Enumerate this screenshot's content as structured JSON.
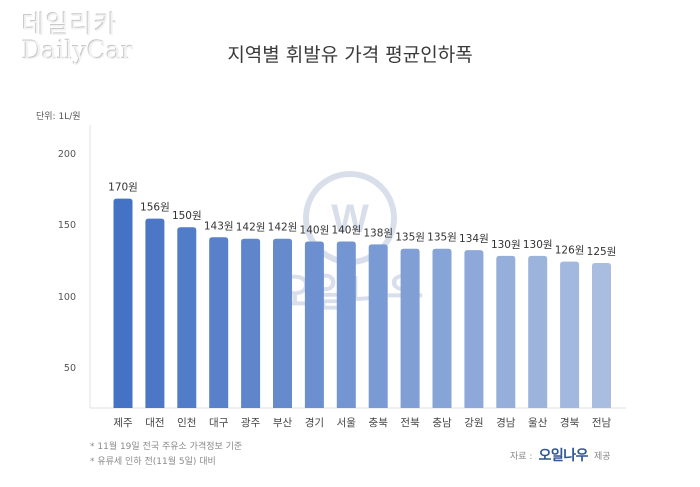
{
  "watermark": {
    "korean": "데일리카",
    "english": "DailyCar"
  },
  "chart_data": {
    "type": "bar",
    "title": "지역별 휘발유 가격 평균인하폭",
    "unit_label": "단위: 1L/원",
    "xlabel": "",
    "ylabel": "",
    "ylim": [
      23.6,
      215
    ],
    "yticks": [
      50,
      100,
      150,
      200
    ],
    "grid": false,
    "value_suffix": "원",
    "categories": [
      "제주",
      "대전",
      "인천",
      "대구",
      "광주",
      "부산",
      "경기",
      "서울",
      "충북",
      "전북",
      "충남",
      "강원",
      "경남",
      "울산",
      "경북",
      "전남"
    ],
    "values": [
      170,
      156,
      150,
      143,
      142,
      142,
      140,
      140,
      138,
      135,
      135,
      134,
      130,
      130,
      126,
      125
    ],
    "data_labels": [
      "170원",
      "156원",
      "150원",
      "143원",
      "142원",
      "142원",
      "140원",
      "140원",
      "138원",
      "135원",
      "135원",
      "134원",
      "130원",
      "130원",
      "126원",
      "125원"
    ],
    "bar_color_start": "#4472c4",
    "bar_color_end": "#a9bde0"
  },
  "center_watermark": {
    "letter": "W",
    "text": "오일나우"
  },
  "notes": [
    "* 11월 19일 전국 주유소 가격정보 기준",
    "* 유류세 인하 전(11월 5일) 대비"
  ],
  "source": {
    "prefix": "자료 :",
    "brand": "오일나우",
    "suffix": "제공"
  }
}
